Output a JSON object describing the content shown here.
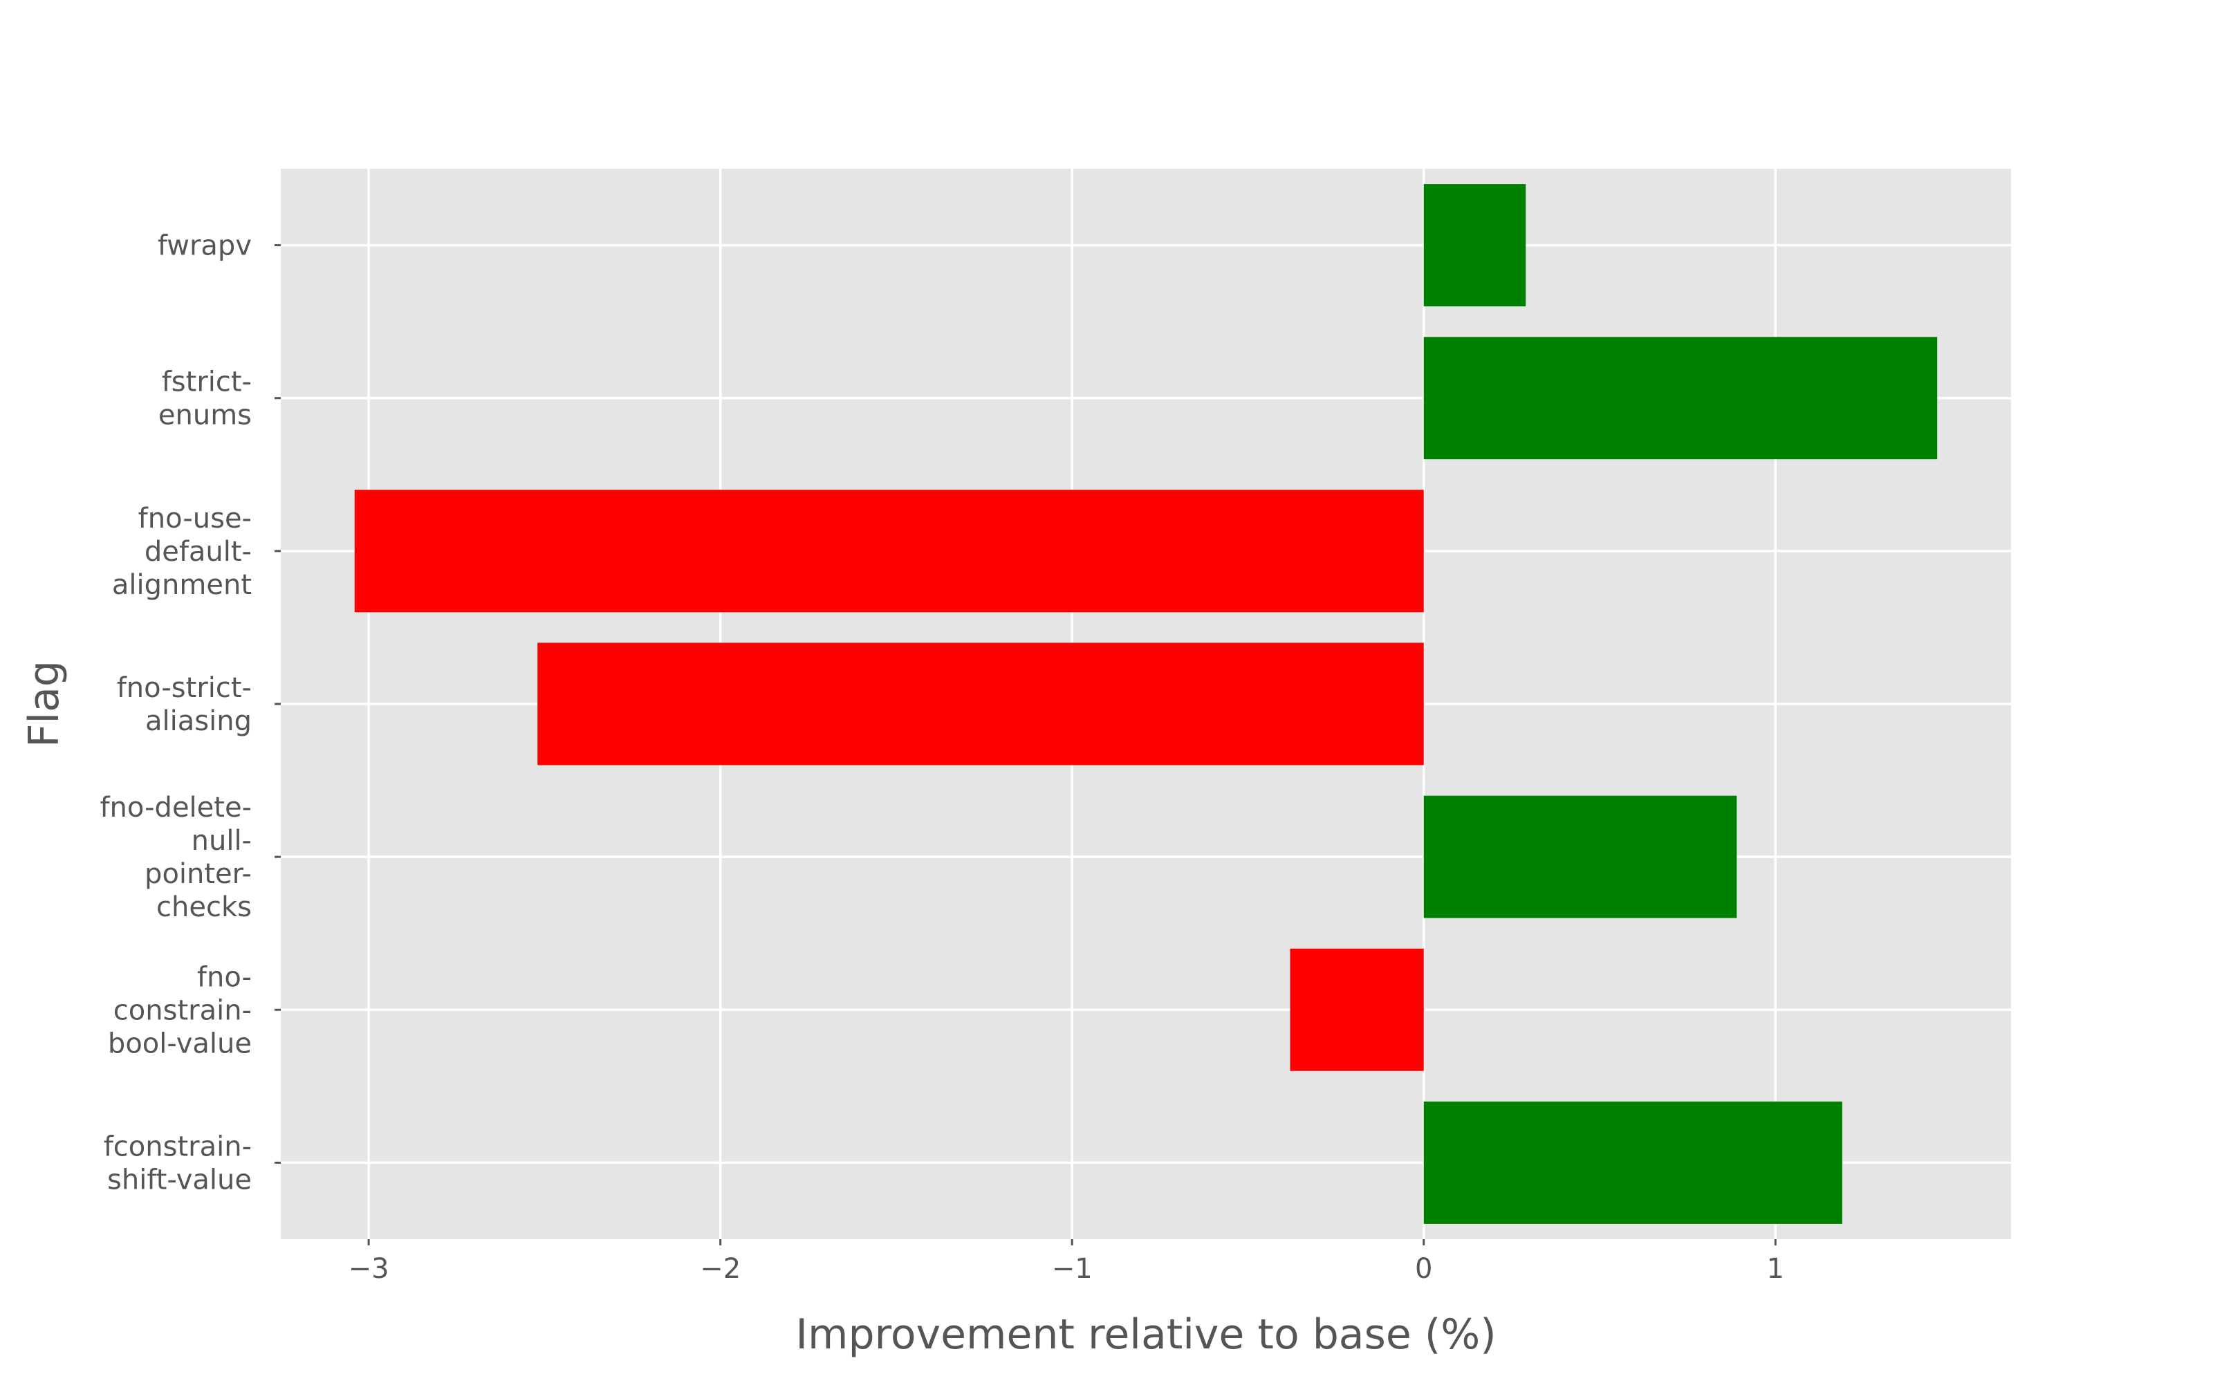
{
  "chart_data": {
    "type": "bar",
    "orientation": "horizontal",
    "style": "ggplot",
    "title": "",
    "xlabel": "Improvement relative to base (%)",
    "ylabel": "Flag",
    "xlim": [
      -3.25,
      1.67
    ],
    "xticks": [
      -3,
      -2,
      -1,
      0,
      1
    ],
    "xtick_labels": [
      "−3",
      "−2",
      "−1",
      "0",
      "1"
    ],
    "grid": true,
    "colors": {
      "positive": "#008000",
      "negative": "#ff0000",
      "panel": "#e5e5e5",
      "grid": "#ffffff"
    },
    "categories": [
      {
        "label_lines": [
          "fwrapv"
        ],
        "value": 0.29
      },
      {
        "label_lines": [
          "fstrict-",
          "enums"
        ],
        "value": 1.46
      },
      {
        "label_lines": [
          "fno-use-",
          "default-",
          "alignment"
        ],
        "value": -3.04
      },
      {
        "label_lines": [
          "fno-strict-",
          "aliasing"
        ],
        "value": -2.52
      },
      {
        "label_lines": [
          "fno-delete-",
          "null-",
          "pointer-",
          "checks"
        ],
        "value": 0.89
      },
      {
        "label_lines": [
          "fno-",
          "constrain-",
          "bool-value"
        ],
        "value": -0.38
      },
      {
        "label_lines": [
          "fconstrain-",
          "shift-value"
        ],
        "value": 1.19
      }
    ]
  }
}
